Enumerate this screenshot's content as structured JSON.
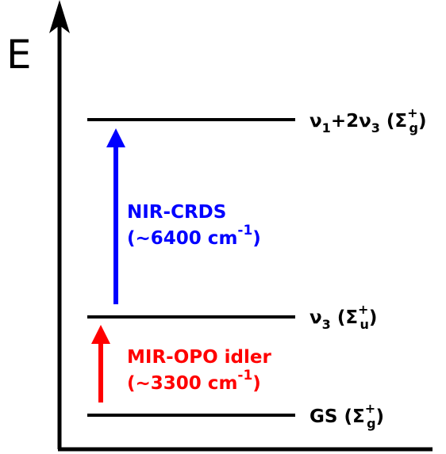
{
  "axis_label": "E",
  "levels": [
    {
      "label": [
        {
          "text": "ν"
        },
        {
          "sub": "1"
        },
        {
          "text": "+2ν"
        },
        {
          "sub": "3"
        },
        {
          "text": " (Σ"
        },
        {
          "sup": "+",
          "sub": "g"
        },
        {
          "text": ")"
        }
      ]
    },
    {
      "label": [
        {
          "text": "ν"
        },
        {
          "sub": "3"
        },
        {
          "text": " (Σ"
        },
        {
          "sup": "+",
          "sub": "u"
        },
        {
          "text": ")"
        }
      ]
    },
    {
      "label": [
        {
          "text": "GS (Σ"
        },
        {
          "sup": "+",
          "sub": "g"
        },
        {
          "text": ")"
        }
      ]
    }
  ],
  "transitions": [
    {
      "color": "#0000ff",
      "lines": [
        [
          {
            "text": "NIR-CRDS"
          }
        ],
        [
          {
            "text": "(~6400 cm"
          },
          {
            "sup": "-1"
          },
          {
            "text": ")"
          }
        ]
      ]
    },
    {
      "color": "#ff0000",
      "lines": [
        [
          {
            "text": "MIR-OPO idler"
          }
        ],
        [
          {
            "text": "(~3300 cm"
          },
          {
            "sup": "-1"
          },
          {
            "text": ")"
          }
        ]
      ]
    }
  ]
}
